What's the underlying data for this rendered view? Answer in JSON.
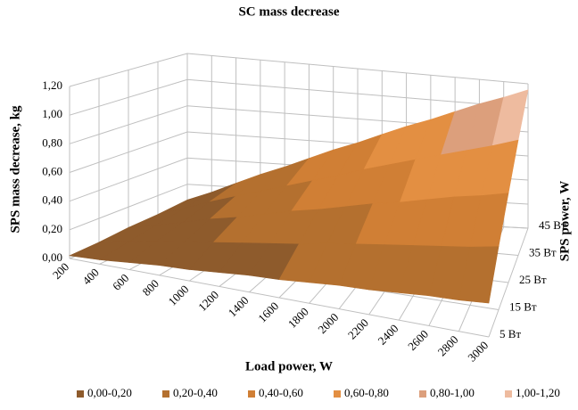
{
  "chart_data": {
    "type": "surface",
    "title": "SC mass decrease",
    "x_label": "Load power, W",
    "y_label": "SPS mass decrease, kg",
    "depth_label": "SPS power, W",
    "categories": [
      "200",
      "400",
      "600",
      "800",
      "1000",
      "1200",
      "1400",
      "1600",
      "1800",
      "2000",
      "2200",
      "2400",
      "2600",
      "2800",
      "3000"
    ],
    "series": [
      {
        "name": "5 Вт",
        "values": [
          0.02,
          0.03,
          0.05,
          0.07,
          0.08,
          0.1,
          0.12,
          0.13,
          0.15,
          0.17,
          0.18,
          0.2,
          0.22,
          0.23,
          0.25
        ]
      },
      {
        "name": "15 Вт",
        "values": [
          0.03,
          0.06,
          0.1,
          0.13,
          0.16,
          0.19,
          0.22,
          0.25,
          0.29,
          0.32,
          0.35,
          0.38,
          0.41,
          0.44,
          0.48
        ]
      },
      {
        "name": "25 Вт",
        "values": [
          0.05,
          0.09,
          0.14,
          0.19,
          0.23,
          0.28,
          0.33,
          0.37,
          0.42,
          0.47,
          0.51,
          0.56,
          0.61,
          0.65,
          0.7
        ]
      },
      {
        "name": "35 Вт",
        "values": [
          0.06,
          0.12,
          0.19,
          0.25,
          0.31,
          0.37,
          0.43,
          0.49,
          0.56,
          0.62,
          0.68,
          0.74,
          0.8,
          0.86,
          0.93
        ]
      },
      {
        "name": "45 Вт",
        "values": [
          0.08,
          0.15,
          0.23,
          0.31,
          0.38,
          0.46,
          0.54,
          0.61,
          0.69,
          0.77,
          0.84,
          0.92,
          1.0,
          1.07,
          1.15
        ]
      }
    ],
    "ylim": [
      0,
      1.2
    ],
    "yticks": [
      {
        "value": 0,
        "label": "0,00"
      },
      {
        "value": 0.2,
        "label": "0,20"
      },
      {
        "value": 0.4,
        "label": "0,40"
      },
      {
        "value": 0.6,
        "label": "0,60"
      },
      {
        "value": 0.8,
        "label": "0,80"
      },
      {
        "value": 1,
        "label": "1,00"
      },
      {
        "value": 1.2,
        "label": "1,20"
      }
    ],
    "grid": true,
    "legend_position": "bottom",
    "legend": [
      {
        "label": "0,00-0,20",
        "color": "#8e5b2c"
      },
      {
        "label": "0,20-0,40",
        "color": "#b4702f"
      },
      {
        "label": "0,40-0,60",
        "color": "#d07f35"
      },
      {
        "label": "0,60-0,80",
        "color": "#e38f42"
      },
      {
        "label": "0,80-1,00",
        "color": "#dc9f7c"
      },
      {
        "label": "1,00-1,20",
        "color": "#eebb9f"
      }
    ]
  }
}
